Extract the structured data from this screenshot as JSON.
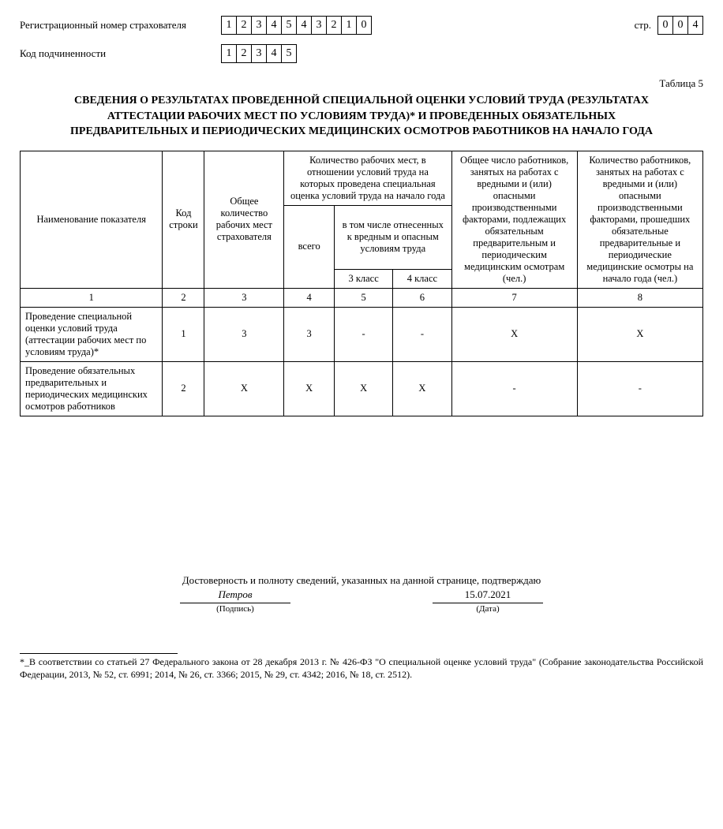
{
  "header": {
    "reg_label": "Регистрационный номер страхователя",
    "reg_digits": [
      "1",
      "2",
      "3",
      "4",
      "5",
      "4",
      "3",
      "2",
      "1",
      "0"
    ],
    "sub_label": "Код подчиненности",
    "sub_digits": [
      "1",
      "2",
      "3",
      "4",
      "5"
    ],
    "page_label": "стр.",
    "page_digits": [
      "0",
      "0",
      "4"
    ]
  },
  "table_number": "Таблица 5",
  "title": "СВЕДЕНИЯ О РЕЗУЛЬТАТАХ ПРОВЕДЕННОЙ СПЕЦИАЛЬНОЙ ОЦЕНКИ УСЛОВИЙ ТРУДА (РЕЗУЛЬТАТАХ АТТЕСТАЦИИ РАБОЧИХ МЕСТ ПО УСЛОВИЯМ ТРУДА)* И ПРОВЕДЕННЫХ ОБЯЗАТЕЛЬНЫХ ПРЕДВАРИТЕЛЬНЫХ И ПЕРИОДИЧЕСКИХ МЕДИЦИНСКИХ ОСМОТРОВ РАБОТНИКОВ НА НАЧАЛО ГОДА",
  "table": {
    "headers": {
      "name": "Наименование показателя",
      "code": "Код строки",
      "total": "Общее количество рабочих мест страхователя",
      "group_count": "Количество рабочих мест, в отношении условий труда на которых проведена специальная оценка условий труда на начало года",
      "vsego": "всего",
      "harmful_group": "в том числе отнесенных к вредным и опасным условиям труда",
      "class3": "3 класс",
      "class4": "4 класс",
      "col7": "Общее число работников, занятых на работах с вредными и (или) опасными производственными факторами, подлежащих обязательным предварительным и периодическим медицинским осмотрам (чел.)",
      "col8": "Количество работников, занятых на работах с вредными и (или) опасными производственными факторами, прошедших обязательные предварительные и периодические медицинские осмотры на начало года (чел.)"
    },
    "col_nums": [
      "1",
      "2",
      "3",
      "4",
      "5",
      "6",
      "7",
      "8"
    ],
    "rows": [
      {
        "name": "Проведение специальной оценки условий труда (аттестации рабочих мест по условиям труда)*",
        "code": "1",
        "c3": "3",
        "c4": "3",
        "c5": "-",
        "c6": "-",
        "c7": "X",
        "c8": "X"
      },
      {
        "name": "Проведение обязательных предварительных и периодических медицинских осмотров работников",
        "code": "2",
        "c3": "X",
        "c4": "X",
        "c5": "X",
        "c6": "X",
        "c7": "-",
        "c8": "-"
      }
    ]
  },
  "footer": {
    "confirm_text": "Достоверность и полноту сведений, указанных на данной странице, подтверждаю",
    "signature_value": "Петров",
    "signature_label": "(Подпись)",
    "date_value": "15.07.2021",
    "date_label": "(Дата)"
  },
  "footnote": "*_В соответствии со статьей 27 Федерального закона от 28 декабря 2013 г. № 426-ФЗ \"О специальной оценке условий труда\" (Собрание законодательства Российской Федерации, 2013, № 52, ст. 6991; 2014, № 26, ст. 3366; 2015, № 29, ст. 4342; 2016, № 18, ст. 2512)."
}
